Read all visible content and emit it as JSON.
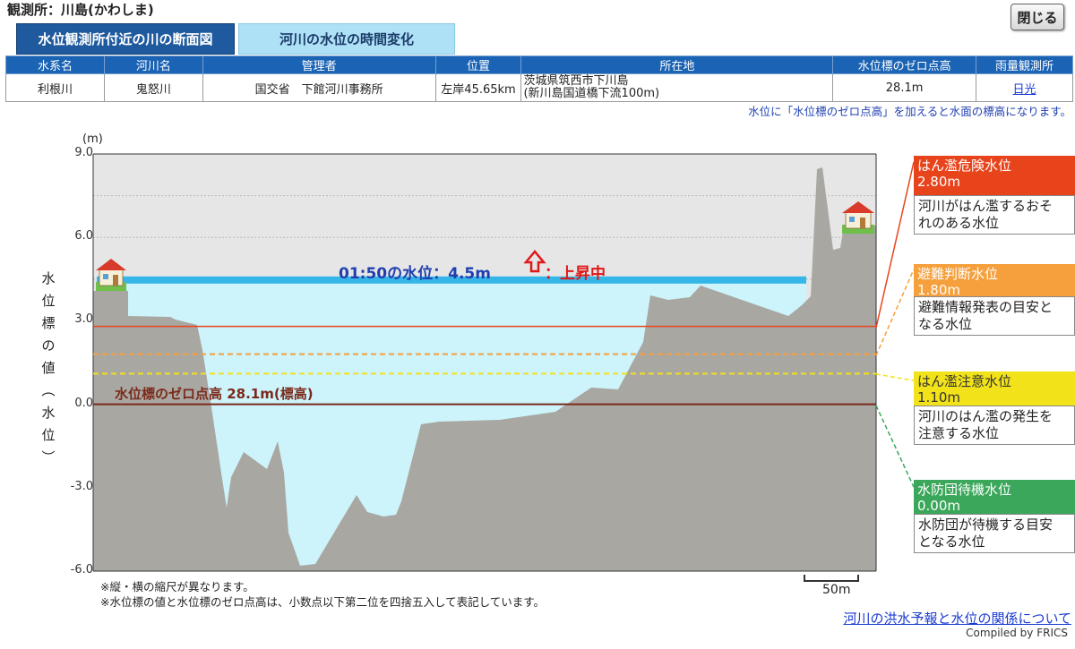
{
  "station_title": "観測所：川島(かわしま)",
  "close_label": "閉じる",
  "tabs": [
    {
      "label": "水位観測所付近の川の断面図"
    },
    {
      "label": "河川の水位の時間変化"
    }
  ],
  "info_table": {
    "headers": [
      "水系名",
      "河川名",
      "管理者",
      "位置",
      "所在地",
      "水位標のゼロ点高",
      "雨量観測所"
    ],
    "row": {
      "suikei": "利根川",
      "kasen": "鬼怒川",
      "kanrisha": "国交省　下館河川事務所",
      "ichi": "左岸45.65km",
      "shozaichi_1": "茨城県筑西市下川島",
      "shozaichi_2": "(新川島国道橋下流100m)",
      "zero_height": "28.1m",
      "rain_station": "日光"
    }
  },
  "top_note": "水位に「水位標のゼロ点高」を加えると水面の標高になります。",
  "chart": {
    "unit": "(m)",
    "ylabel": "水位標の値（水位）",
    "ylabel_chars": [
      "水",
      "位",
      "標",
      "の",
      "値",
      "︵",
      "水",
      "位",
      "︶"
    ],
    "ticks": [
      "9.0",
      "6.0",
      "3.0",
      "0.0",
      "-3.0",
      "-6.0"
    ],
    "current_label": "01:50の水位：4.5m",
    "trend_label": "：上昇中",
    "zero_label": "水位標のゼロ点高 28.1m(標高)",
    "scale_label": "50m",
    "foot_note_1": "※縦・横の縮尺が異なります。",
    "foot_note_2": "※水位標の値と水位標のゼロ点高は、小数点以下第二位を四捨五入して表記しています。"
  },
  "chart_data": {
    "type": "area",
    "ylim": [
      -6.0,
      9.0
    ],
    "current_water_level": 4.5,
    "thresholds": [
      {
        "name": "はん濫危険水位",
        "value": 2.8,
        "color": "#e8441c"
      },
      {
        "name": "避難判断水位",
        "value": 1.8,
        "color": "#f5a03c"
      },
      {
        "name": "はん濫注意水位",
        "value": 1.1,
        "color": "#f2e21a"
      },
      {
        "name": "水防団待機水位",
        "value": 0.0,
        "color": "#3aa75a"
      }
    ],
    "zero_point_height_m": 28.1
  },
  "levels": [
    {
      "title": "はん濫危険水位",
      "value": "2.80m",
      "desc_1": "河川がはん濫するおそ",
      "desc_2": "れのある水位",
      "color": "#e8441c"
    },
    {
      "title": "避難判断水位",
      "value": "1.80m",
      "desc_1": "避難情報発表の目安と",
      "desc_2": "なる水位",
      "color": "#f5a03c"
    },
    {
      "title": "はん濫注意水位",
      "value": "1.10m",
      "desc_1": "河川のはん濫の発生を",
      "desc_2": "注意する水位",
      "color": "#f2e21a"
    },
    {
      "title": "水防団待機水位",
      "value": "0.00m",
      "desc_1": "水防団が待機する目安",
      "desc_2": "となる水位",
      "color": "#3aa75a"
    }
  ],
  "bottom_link": "河川の洪水予報と水位の関係について",
  "credit": "Compiled by FRICS"
}
